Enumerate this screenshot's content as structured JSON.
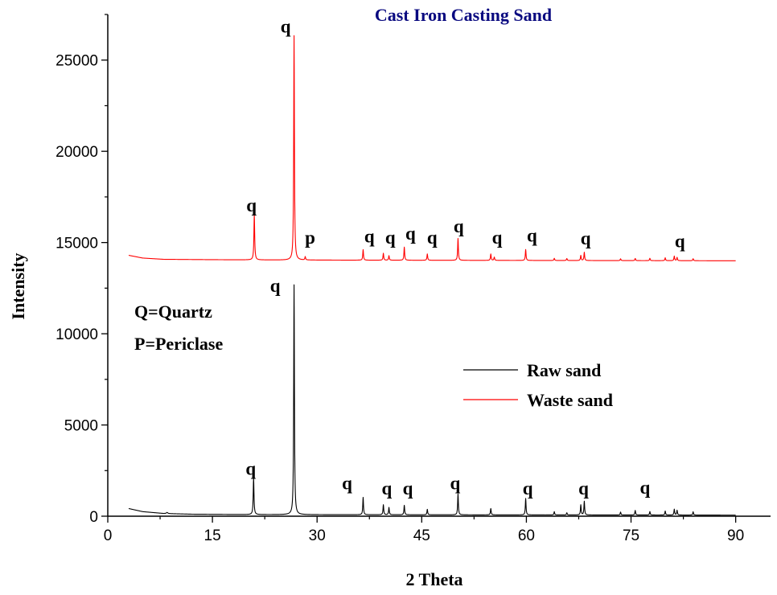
{
  "chart_data": {
    "type": "line",
    "title": "Cast Iron Casting Sand",
    "xlabel": "2 Theta",
    "ylabel": "Intensity",
    "xlim": [
      0,
      95
    ],
    "ylim": [
      0,
      27500
    ],
    "xticks": [
      0,
      15,
      30,
      45,
      60,
      75,
      90
    ],
    "yticks": [
      0,
      5000,
      10000,
      15000,
      20000,
      25000
    ],
    "legend_position": "center-right",
    "annotations": [
      "Q=Quartz",
      "P=Periclase"
    ],
    "series": [
      {
        "name": "Raw sand",
        "color": "#000000",
        "baseline": [
          [
            3,
            420
          ],
          [
            5,
            250
          ],
          [
            8,
            150
          ],
          [
            12,
            110
          ],
          [
            20,
            90
          ],
          [
            40,
            80
          ],
          [
            90,
            60
          ]
        ],
        "peaks": [
          [
            8.5,
            60,
            0.25
          ],
          [
            20.9,
            2000,
            0.13
          ],
          [
            26.7,
            12600,
            0.12
          ],
          [
            36.6,
            950,
            0.12
          ],
          [
            39.5,
            550,
            0.12
          ],
          [
            40.3,
            400,
            0.12
          ],
          [
            42.5,
            520,
            0.12
          ],
          [
            45.8,
            300,
            0.12
          ],
          [
            50.2,
            1150,
            0.12
          ],
          [
            54.9,
            350,
            0.12
          ],
          [
            59.9,
            900,
            0.12
          ],
          [
            64.0,
            180,
            0.12
          ],
          [
            65.8,
            120,
            0.12
          ],
          [
            67.8,
            550,
            0.12
          ],
          [
            68.3,
            750,
            0.12
          ],
          [
            73.5,
            160,
            0.12
          ],
          [
            75.6,
            250,
            0.12
          ],
          [
            77.7,
            190,
            0.12
          ],
          [
            79.9,
            220,
            0.12
          ],
          [
            81.2,
            320,
            0.12
          ],
          [
            81.6,
            260,
            0.12
          ],
          [
            83.9,
            180,
            0.12
          ]
        ],
        "peak_labels": [
          {
            "text": "q",
            "x": 20.5,
            "y": 2280
          },
          {
            "text": "q",
            "x": 24.0,
            "y": 12300
          },
          {
            "text": "q",
            "x": 34.3,
            "y": 1480
          },
          {
            "text": "q",
            "x": 40.0,
            "y": 1180
          },
          {
            "text": "q",
            "x": 43.0,
            "y": 1200
          },
          {
            "text": "q",
            "x": 49.8,
            "y": 1480
          },
          {
            "text": "q",
            "x": 60.2,
            "y": 1180
          },
          {
            "text": "q",
            "x": 68.2,
            "y": 1180
          },
          {
            "text": "q",
            "x": 77.0,
            "y": 1240
          }
        ]
      },
      {
        "name": "Waste sand",
        "color": "#ff0000",
        "baseline": [
          [
            3,
            14300
          ],
          [
            5,
            14150
          ],
          [
            8,
            14080
          ],
          [
            15,
            14060
          ],
          [
            25,
            14040
          ],
          [
            40,
            14030
          ],
          [
            90,
            14000
          ]
        ],
        "peaks": [
          [
            21.0,
            2500,
            0.13
          ],
          [
            26.7,
            12300,
            0.12
          ],
          [
            28.3,
            180,
            0.12
          ],
          [
            36.6,
            580,
            0.12
          ],
          [
            39.5,
            380,
            0.12
          ],
          [
            40.3,
            250,
            0.12
          ],
          [
            42.5,
            720,
            0.12
          ],
          [
            45.8,
            350,
            0.12
          ],
          [
            50.2,
            1200,
            0.12
          ],
          [
            54.9,
            350,
            0.12
          ],
          [
            55.4,
            180,
            0.12
          ],
          [
            59.9,
            600,
            0.12
          ],
          [
            64.0,
            120,
            0.12
          ],
          [
            65.8,
            110,
            0.12
          ],
          [
            67.8,
            280,
            0.12
          ],
          [
            68.3,
            450,
            0.12
          ],
          [
            73.5,
            100,
            0.12
          ],
          [
            75.6,
            120,
            0.12
          ],
          [
            77.7,
            130,
            0.12
          ],
          [
            79.9,
            160,
            0.12
          ],
          [
            81.2,
            250,
            0.12
          ],
          [
            81.6,
            180,
            0.12
          ],
          [
            83.9,
            110,
            0.12
          ]
        ],
        "peak_labels": [
          {
            "text": "q",
            "x": 20.6,
            "y": 16700
          },
          {
            "text": "q",
            "x": 25.5,
            "y": 26500
          },
          {
            "text": "p",
            "x": 29.0,
            "y": 14950
          },
          {
            "text": "q",
            "x": 37.5,
            "y": 15000
          },
          {
            "text": "q",
            "x": 40.5,
            "y": 14950
          },
          {
            "text": "q",
            "x": 43.4,
            "y": 15150
          },
          {
            "text": "q",
            "x": 46.5,
            "y": 14950
          },
          {
            "text": "q",
            "x": 50.3,
            "y": 15550
          },
          {
            "text": "q",
            "x": 55.8,
            "y": 14950
          },
          {
            "text": "q",
            "x": 60.8,
            "y": 15050
          },
          {
            "text": "q",
            "x": 68.5,
            "y": 14900
          },
          {
            "text": "q",
            "x": 82.0,
            "y": 14750
          }
        ]
      }
    ]
  }
}
